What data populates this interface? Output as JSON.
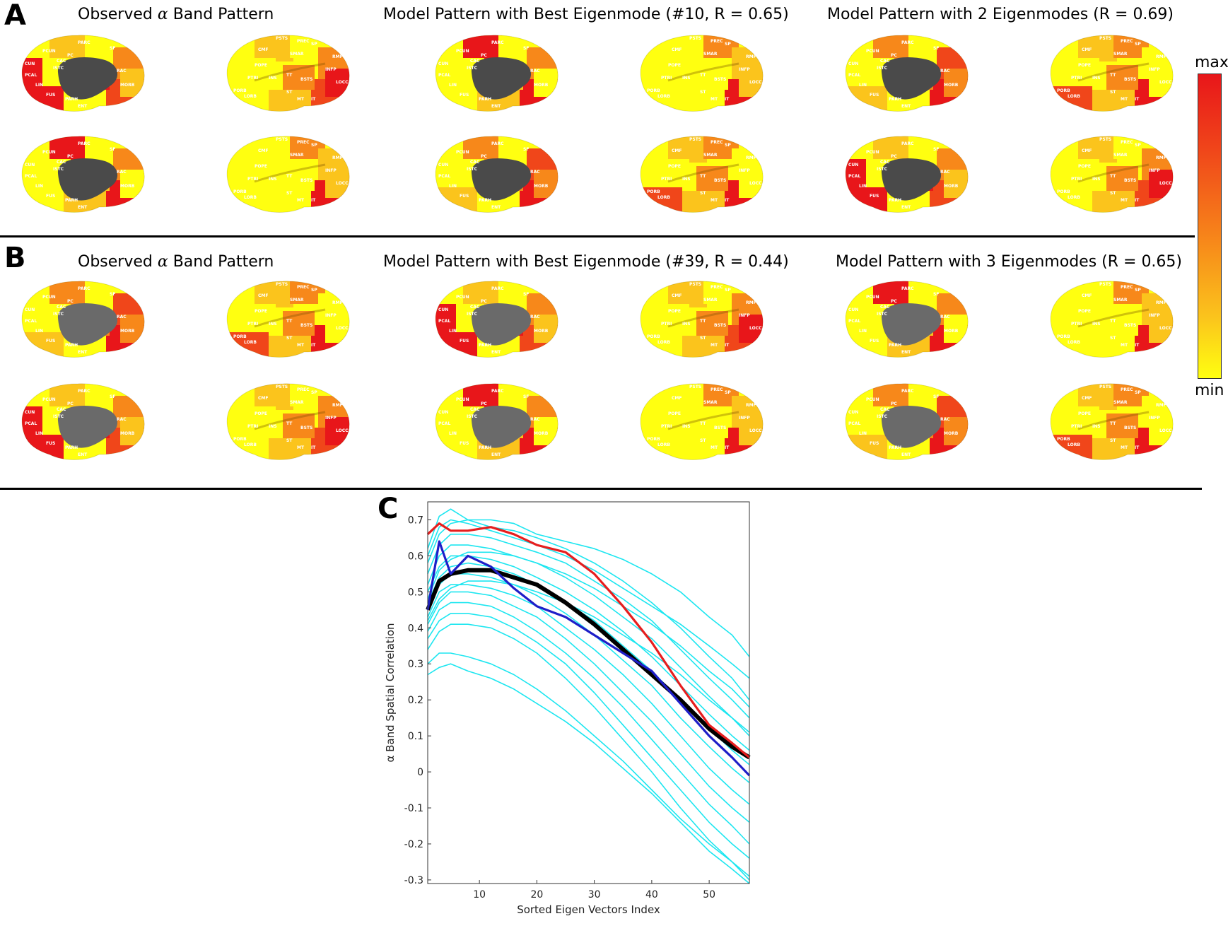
{
  "panels": {
    "A": {
      "letter": "A",
      "titles": {
        "observed_prefix": "Observed",
        "observed_symbol": "α",
        "observed_suffix": "Band Pattern",
        "best": "Model Pattern with Best Eigenmode (#10,  R =  0.65)",
        "multi": "Model Pattern with 2 Eigenmodes (R =  0.69)"
      }
    },
    "B": {
      "letter": "B",
      "titles": {
        "observed_prefix": "Observed",
        "observed_symbol": "α",
        "observed_suffix": "Band Pattern",
        "best": "Model Pattern with Best Eigenmode (#39,  R =  0.44)",
        "multi": "Model Pattern with 3 Eigenmodes (R =  0.65)"
      }
    },
    "C": {
      "letter": "C"
    }
  },
  "colorbar": {
    "max_label": "max",
    "min_label": "min",
    "colors": [
      "#e8161a",
      "#f0461a",
      "#f7881a",
      "#fbc41c",
      "#ffff10"
    ]
  },
  "region_labels": {
    "medial": [
      "PARC",
      "PCUN",
      "PC",
      "CUN",
      "ISTC",
      "PCAL",
      "LIN",
      "FUS",
      "PARH",
      "ENT",
      "CAC",
      "RAC",
      "MORB",
      "SF"
    ],
    "lateral": [
      "PREC",
      "PSTS",
      "SP",
      "CMF",
      "SMAR",
      "RMF",
      "POPE",
      "PTRI",
      "INS",
      "TT",
      "BSTS",
      "INFP",
      "LOCC",
      "PORB",
      "LORB",
      "ST",
      "MT",
      "IT"
    ]
  },
  "chart_data": {
    "type": "line",
    "xlabel": "Sorted Eigen Vectors Index",
    "ylabel": "α Band Spatial Correlation",
    "xlim": [
      1,
      57
    ],
    "ylim": [
      -0.31,
      0.75
    ],
    "xticks": [
      10,
      20,
      30,
      40,
      50
    ],
    "yticks": [
      -0.3,
      -0.2,
      -0.1,
      0,
      0.1,
      0.2,
      0.3,
      0.4,
      0.5,
      0.6,
      0.7
    ],
    "x": [
      1,
      3,
      5,
      8,
      12,
      16,
      20,
      25,
      30,
      35,
      40,
      45,
      50,
      54,
      57
    ],
    "series": [
      {
        "color": "#e61e1e",
        "values": [
          0.66,
          0.69,
          0.67,
          0.67,
          0.68,
          0.66,
          0.63,
          0.61,
          0.55,
          0.46,
          0.36,
          0.24,
          0.13,
          0.08,
          0.04
        ]
      },
      {
        "color": "#1e1ec8",
        "values": [
          0.45,
          0.64,
          0.55,
          0.6,
          0.57,
          0.51,
          0.46,
          0.43,
          0.38,
          0.33,
          0.28,
          0.19,
          0.1,
          0.04,
          -0.01
        ]
      },
      {
        "color": "#000000",
        "values": [
          0.45,
          0.53,
          0.55,
          0.56,
          0.56,
          0.54,
          0.52,
          0.47,
          0.41,
          0.34,
          0.27,
          0.2,
          0.12,
          0.07,
          0.04
        ]
      },
      {
        "color": "#1de6f0",
        "values": [
          0.62,
          0.71,
          0.73,
          0.7,
          0.7,
          0.69,
          0.66,
          0.64,
          0.62,
          0.59,
          0.55,
          0.5,
          0.43,
          0.38,
          0.32
        ]
      },
      {
        "color": "#1de6f0",
        "values": [
          0.58,
          0.66,
          0.69,
          0.7,
          0.68,
          0.67,
          0.65,
          0.62,
          0.58,
          0.53,
          0.47,
          0.4,
          0.32,
          0.26,
          0.2
        ]
      },
      {
        "color": "#1de6f0",
        "values": [
          0.55,
          0.63,
          0.66,
          0.66,
          0.65,
          0.63,
          0.61,
          0.58,
          0.53,
          0.48,
          0.42,
          0.34,
          0.26,
          0.2,
          0.15
        ]
      },
      {
        "color": "#1de6f0",
        "values": [
          0.52,
          0.6,
          0.63,
          0.63,
          0.62,
          0.6,
          0.58,
          0.54,
          0.49,
          0.43,
          0.37,
          0.29,
          0.21,
          0.15,
          0.1
        ]
      },
      {
        "color": "#1de6f0",
        "values": [
          0.5,
          0.57,
          0.6,
          0.6,
          0.59,
          0.57,
          0.54,
          0.5,
          0.45,
          0.39,
          0.32,
          0.24,
          0.16,
          0.1,
          0.06
        ]
      },
      {
        "color": "#1de6f0",
        "values": [
          0.47,
          0.54,
          0.57,
          0.58,
          0.57,
          0.55,
          0.52,
          0.47,
          0.42,
          0.35,
          0.28,
          0.2,
          0.12,
          0.06,
          0.02
        ]
      },
      {
        "color": "#1de6f0",
        "values": [
          0.45,
          0.52,
          0.55,
          0.55,
          0.54,
          0.52,
          0.49,
          0.44,
          0.38,
          0.31,
          0.24,
          0.15,
          0.07,
          0.01,
          -0.03
        ]
      },
      {
        "color": "#1de6f0",
        "values": [
          0.43,
          0.5,
          0.52,
          0.52,
          0.51,
          0.49,
          0.46,
          0.4,
          0.34,
          0.27,
          0.19,
          0.1,
          0.01,
          -0.05,
          -0.09
        ]
      },
      {
        "color": "#1de6f0",
        "values": [
          0.41,
          0.47,
          0.5,
          0.5,
          0.49,
          0.46,
          0.43,
          0.37,
          0.3,
          0.22,
          0.14,
          0.05,
          -0.04,
          -0.1,
          -0.14
        ]
      },
      {
        "color": "#1de6f0",
        "values": [
          0.39,
          0.45,
          0.47,
          0.47,
          0.46,
          0.43,
          0.39,
          0.33,
          0.26,
          0.18,
          0.09,
          0.0,
          -0.09,
          -0.15,
          -0.2
        ]
      },
      {
        "color": "#1de6f0",
        "values": [
          0.37,
          0.42,
          0.44,
          0.44,
          0.43,
          0.4,
          0.36,
          0.3,
          0.22,
          0.13,
          0.04,
          -0.05,
          -0.14,
          -0.2,
          -0.24
        ]
      },
      {
        "color": "#1de6f0",
        "values": [
          0.34,
          0.39,
          0.41,
          0.41,
          0.4,
          0.37,
          0.33,
          0.26,
          0.18,
          0.09,
          0.0,
          -0.1,
          -0.19,
          -0.25,
          -0.3
        ]
      },
      {
        "color": "#1de6f0",
        "values": [
          0.3,
          0.33,
          0.33,
          0.32,
          0.3,
          0.27,
          0.23,
          0.17,
          0.1,
          0.03,
          -0.05,
          -0.13,
          -0.2,
          -0.25,
          -0.29
        ]
      },
      {
        "color": "#1de6f0",
        "values": [
          0.27,
          0.29,
          0.3,
          0.28,
          0.26,
          0.23,
          0.19,
          0.14,
          0.08,
          0.01,
          -0.06,
          -0.14,
          -0.22,
          -0.27,
          -0.31
        ]
      },
      {
        "color": "#1de6f0",
        "values": [
          0.6,
          0.68,
          0.7,
          0.69,
          0.67,
          0.65,
          0.63,
          0.6,
          0.56,
          0.51,
          0.46,
          0.41,
          0.35,
          0.3,
          0.26
        ]
      },
      {
        "color": "#1de6f0",
        "values": [
          0.48,
          0.56,
          0.59,
          0.61,
          0.61,
          0.6,
          0.58,
          0.55,
          0.51,
          0.46,
          0.41,
          0.35,
          0.28,
          0.23,
          0.18
        ]
      },
      {
        "color": "#1de6f0",
        "values": [
          0.42,
          0.48,
          0.51,
          0.53,
          0.53,
          0.52,
          0.5,
          0.47,
          0.43,
          0.38,
          0.33,
          0.27,
          0.2,
          0.15,
          0.11
        ]
      }
    ]
  }
}
